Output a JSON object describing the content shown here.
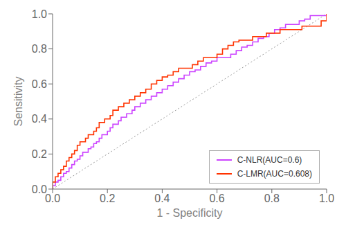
{
  "chart_data": {
    "type": "step",
    "xlabel": "1 - Specificity",
    "ylabel": "Sensitivity",
    "xlim": [
      0.0,
      1.0
    ],
    "ylim": [
      0.0,
      1.0
    ],
    "xticks": [
      {
        "value": 0.0,
        "label": "0.0"
      },
      0.2,
      0.4,
      0.6,
      0.8,
      {
        "value": 1.0,
        "label": "1.0"
      }
    ],
    "yticks": [
      {
        "value": 0.0,
        "label": "0.0"
      },
      0.2,
      0.4,
      0.6,
      0.8,
      {
        "value": 1.0,
        "label": "1.0"
      }
    ],
    "grid": false,
    "legend": "lower right",
    "reference_line": {
      "x": [
        0,
        1
      ],
      "y": [
        0,
        1
      ],
      "color": "#999999",
      "line_style": "dotted"
    },
    "series": [
      {
        "name": "C-NLR(AUC=0.6)",
        "color": "#CC44FF",
        "x": [
          0.0,
          0.0,
          0.01,
          0.01,
          0.02,
          0.02,
          0.03,
          0.03,
          0.04,
          0.04,
          0.05,
          0.05,
          0.06,
          0.06,
          0.07,
          0.07,
          0.08,
          0.08,
          0.09,
          0.09,
          0.1,
          0.1,
          0.11,
          0.11,
          0.13,
          0.13,
          0.14,
          0.14,
          0.15,
          0.15,
          0.16,
          0.16,
          0.17,
          0.17,
          0.18,
          0.18,
          0.19,
          0.2,
          0.2,
          0.21,
          0.21,
          0.22,
          0.22,
          0.23,
          0.24,
          0.24,
          0.25,
          0.25,
          0.27,
          0.27,
          0.29,
          0.29,
          0.3,
          0.3,
          0.32,
          0.32,
          0.34,
          0.34,
          0.36,
          0.36,
          0.38,
          0.38,
          0.4,
          0.4,
          0.42,
          0.42,
          0.44,
          0.44,
          0.46,
          0.46,
          0.48,
          0.48,
          0.5,
          0.5,
          0.52,
          0.52,
          0.54,
          0.54,
          0.56,
          0.56,
          0.58,
          0.58,
          0.6,
          0.6,
          0.62,
          0.63,
          0.65,
          0.65,
          0.67,
          0.67,
          0.69,
          0.69,
          0.71,
          0.71,
          0.73,
          0.73,
          0.75,
          0.75,
          0.77,
          0.77,
          0.79,
          0.79,
          0.81,
          0.81,
          0.83,
          0.83,
          0.85,
          0.85,
          0.87,
          0.88,
          0.9,
          0.9,
          0.92,
          0.92,
          0.94,
          0.94,
          0.96,
          0.97,
          1.0
        ],
        "values": [
          0.0,
          0.02,
          0.02,
          0.04,
          0.04,
          0.05,
          0.05,
          0.07,
          0.07,
          0.09,
          0.09,
          0.1,
          0.1,
          0.12,
          0.12,
          0.14,
          0.14,
          0.16,
          0.16,
          0.17,
          0.17,
          0.19,
          0.19,
          0.21,
          0.21,
          0.23,
          0.23,
          0.24,
          0.24,
          0.26,
          0.26,
          0.27,
          0.27,
          0.29,
          0.29,
          0.31,
          0.31,
          0.31,
          0.33,
          0.33,
          0.35,
          0.35,
          0.37,
          0.37,
          0.37,
          0.39,
          0.39,
          0.41,
          0.41,
          0.43,
          0.43,
          0.45,
          0.45,
          0.47,
          0.47,
          0.49,
          0.49,
          0.51,
          0.51,
          0.53,
          0.53,
          0.55,
          0.55,
          0.57,
          0.57,
          0.59,
          0.59,
          0.61,
          0.61,
          0.63,
          0.63,
          0.65,
          0.65,
          0.67,
          0.67,
          0.68,
          0.68,
          0.7,
          0.7,
          0.72,
          0.72,
          0.73,
          0.73,
          0.75,
          0.75,
          0.75,
          0.75,
          0.77,
          0.77,
          0.79,
          0.79,
          0.81,
          0.81,
          0.82,
          0.82,
          0.84,
          0.84,
          0.86,
          0.86,
          0.87,
          0.87,
          0.89,
          0.89,
          0.91,
          0.91,
          0.92,
          0.92,
          0.94,
          0.94,
          0.94,
          0.94,
          0.96,
          0.96,
          0.97,
          0.97,
          0.99,
          0.99,
          0.99,
          1.0
        ]
      },
      {
        "name": "C-LMR(AUC=0.608)",
        "color": "#FF3300",
        "x": [
          0.0,
          0.0,
          0.01,
          0.01,
          0.02,
          0.02,
          0.03,
          0.03,
          0.04,
          0.04,
          0.05,
          0.05,
          0.06,
          0.06,
          0.07,
          0.07,
          0.08,
          0.08,
          0.09,
          0.09,
          0.1,
          0.1,
          0.11,
          0.12,
          0.12,
          0.13,
          0.13,
          0.14,
          0.15,
          0.15,
          0.16,
          0.16,
          0.17,
          0.17,
          0.18,
          0.19,
          0.19,
          0.2,
          0.21,
          0.21,
          0.22,
          0.22,
          0.23,
          0.24,
          0.24,
          0.25,
          0.26,
          0.26,
          0.28,
          0.28,
          0.3,
          0.3,
          0.32,
          0.32,
          0.34,
          0.34,
          0.36,
          0.36,
          0.38,
          0.38,
          0.4,
          0.4,
          0.42,
          0.42,
          0.44,
          0.44,
          0.46,
          0.46,
          0.48,
          0.49,
          0.51,
          0.51,
          0.53,
          0.53,
          0.55,
          0.55,
          0.57,
          0.58,
          0.6,
          0.6,
          0.62,
          0.62,
          0.64,
          0.64,
          0.66,
          0.66,
          0.68,
          0.68,
          0.7,
          0.71,
          0.73,
          0.73,
          0.75,
          0.76,
          0.78,
          0.78,
          0.8,
          0.81,
          0.83,
          0.83,
          0.85,
          0.86,
          0.88,
          0.89,
          0.91,
          0.91,
          0.93,
          0.94,
          0.96,
          0.97,
          0.98,
          0.99,
          1.0
        ],
        "values": [
          0.0,
          0.04,
          0.04,
          0.07,
          0.07,
          0.09,
          0.09,
          0.11,
          0.11,
          0.13,
          0.13,
          0.16,
          0.16,
          0.18,
          0.18,
          0.2,
          0.2,
          0.22,
          0.22,
          0.25,
          0.25,
          0.27,
          0.27,
          0.27,
          0.29,
          0.29,
          0.31,
          0.31,
          0.31,
          0.33,
          0.33,
          0.35,
          0.35,
          0.38,
          0.38,
          0.38,
          0.4,
          0.4,
          0.4,
          0.42,
          0.42,
          0.45,
          0.45,
          0.45,
          0.47,
          0.47,
          0.47,
          0.49,
          0.49,
          0.51,
          0.51,
          0.53,
          0.53,
          0.55,
          0.55,
          0.57,
          0.57,
          0.6,
          0.6,
          0.62,
          0.62,
          0.64,
          0.64,
          0.65,
          0.65,
          0.67,
          0.67,
          0.69,
          0.69,
          0.69,
          0.69,
          0.71,
          0.71,
          0.73,
          0.73,
          0.75,
          0.75,
          0.75,
          0.75,
          0.77,
          0.77,
          0.8,
          0.8,
          0.82,
          0.82,
          0.84,
          0.84,
          0.85,
          0.85,
          0.85,
          0.85,
          0.87,
          0.87,
          0.87,
          0.87,
          0.89,
          0.89,
          0.89,
          0.89,
          0.91,
          0.91,
          0.91,
          0.91,
          0.91,
          0.91,
          0.93,
          0.93,
          0.93,
          0.93,
          0.93,
          0.96,
          0.96,
          1.0
        ]
      }
    ]
  }
}
